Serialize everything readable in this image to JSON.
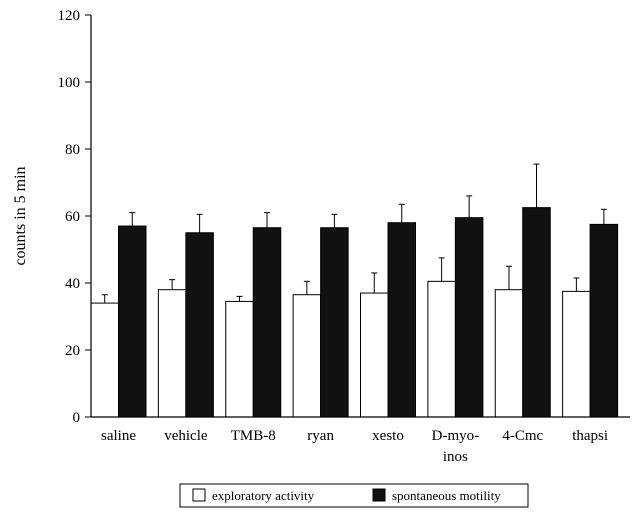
{
  "chart_data": {
    "type": "bar",
    "categories": [
      [
        "saline"
      ],
      [
        "vehicle"
      ],
      [
        "TMB-8"
      ],
      [
        "ryan"
      ],
      [
        "xesto"
      ],
      [
        "D-myo-",
        "inos"
      ],
      [
        "4-Cmc"
      ],
      [
        "thapsi"
      ]
    ],
    "series": [
      {
        "name": "exploratory activity",
        "color": "#ffffff",
        "values": [
          34,
          38,
          34.5,
          36.5,
          37,
          40.5,
          38,
          37.5
        ],
        "errors": [
          2.5,
          3,
          1.5,
          4,
          6,
          7,
          7,
          4
        ]
      },
      {
        "name": "spontaneous motility",
        "color": "#111111",
        "values": [
          57,
          55,
          56.5,
          56.5,
          58,
          59.5,
          62.5,
          57.5
        ],
        "errors": [
          4,
          5.5,
          4.5,
          4,
          5.5,
          6.5,
          13,
          4.5
        ]
      }
    ],
    "ylabel": "counts in 5 min",
    "xlabel": "",
    "title": "",
    "ylim": [
      0,
      120
    ],
    "yticks": [
      0,
      20,
      40,
      60,
      80,
      100,
      120
    ],
    "grid": false,
    "legend_position": "bottom"
  }
}
